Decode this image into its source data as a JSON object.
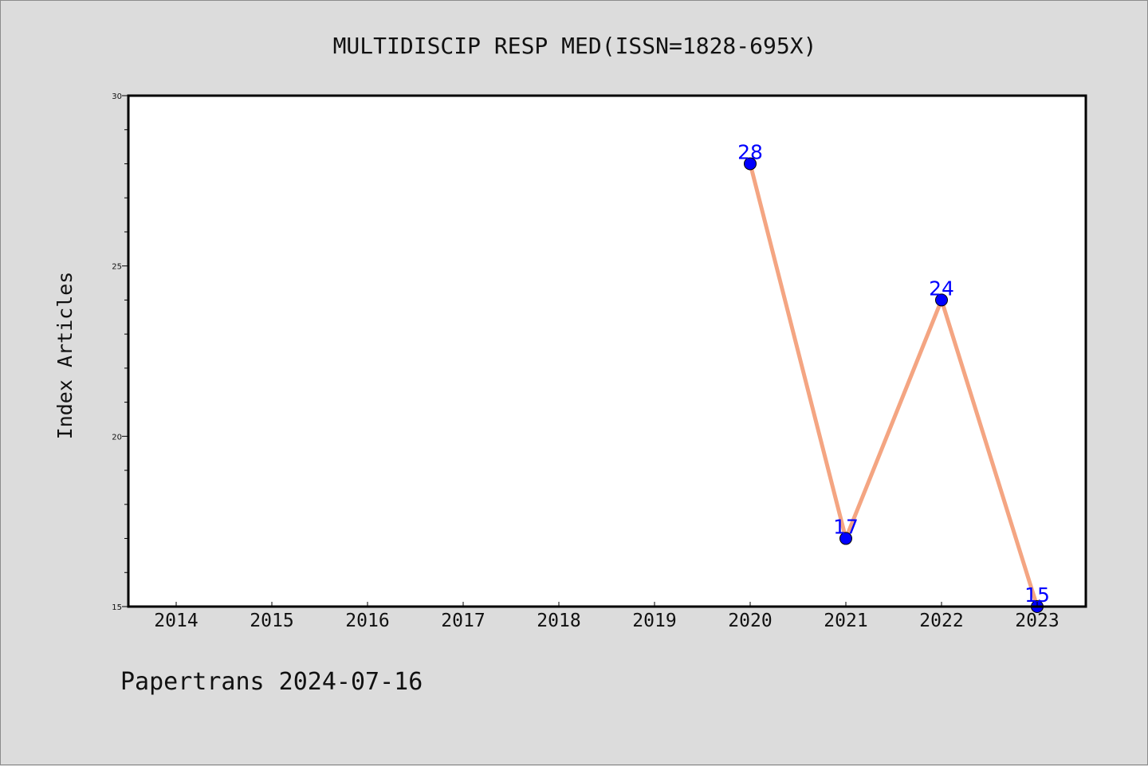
{
  "chart_data": {
    "type": "line",
    "title": "MULTIDISCIP RESP MED(ISSN=1828-695X)",
    "ylabel": "Index Articles",
    "xlabel": "",
    "categories": [
      "2014",
      "2015",
      "2016",
      "2017",
      "2018",
      "2019",
      "2020",
      "2021",
      "2022",
      "2023"
    ],
    "yticks": [
      "15",
      "20",
      "25",
      "30"
    ],
    "ylim": [
      15,
      30
    ],
    "series": [
      {
        "values": [
          null,
          null,
          null,
          null,
          null,
          null,
          28,
          17,
          24,
          15
        ],
        "labels": [
          "",
          "",
          "",
          "",
          "",
          "",
          "28",
          "17",
          "24",
          "15"
        ]
      }
    ],
    "grid": false,
    "line_color": "#f4a582",
    "marker_color": "#0000ff",
    "label_color": "#0000ff"
  },
  "footer": {
    "text": "Papertrans 2024-07-16"
  }
}
